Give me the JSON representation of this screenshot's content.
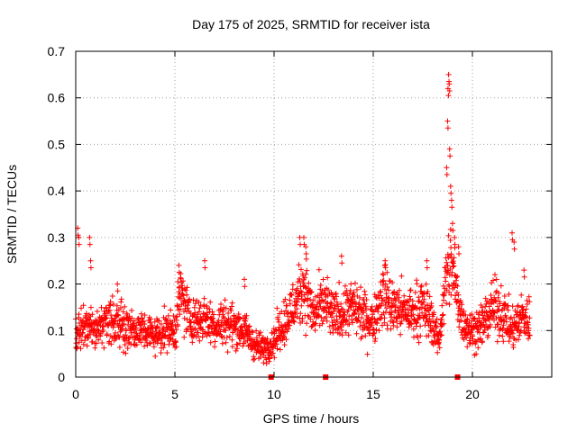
{
  "chart_data": {
    "type": "scatter",
    "title": "Day 175 of 2025, SRMTID for receiver ista",
    "xlabel": "GPS time / hours",
    "ylabel": "SRMTID / TECUs",
    "xlim": [
      0,
      24
    ],
    "ylim": [
      0,
      0.7
    ],
    "xticks": [
      0,
      5,
      10,
      15,
      20
    ],
    "xtick_labels": [
      "0",
      "5",
      "10",
      "15",
      "20"
    ],
    "yticks": [
      0,
      0.1,
      0.2,
      0.3,
      0.4,
      0.5,
      0.6,
      0.7
    ],
    "ytick_labels": [
      "0",
      "0.1",
      "0.2",
      "0.3",
      "0.4",
      "0.5",
      "0.6",
      "0.7"
    ],
    "grid": true,
    "marker": "plus",
    "color": "#ff0000",
    "series": [
      {
        "name": "SRMTID",
        "x_start": 0,
        "x_end": 22.9,
        "n_points": 2000,
        "baseline": [
          [
            0.0,
            0.09
          ],
          [
            0.5,
            0.11
          ],
          [
            1.0,
            0.1
          ],
          [
            1.5,
            0.12
          ],
          [
            2.0,
            0.12
          ],
          [
            2.5,
            0.11
          ],
          [
            3.0,
            0.1
          ],
          [
            3.5,
            0.1
          ],
          [
            4.0,
            0.09
          ],
          [
            4.5,
            0.1
          ],
          [
            5.0,
            0.1
          ],
          [
            5.3,
            0.18
          ],
          [
            5.7,
            0.13
          ],
          [
            6.0,
            0.12
          ],
          [
            6.5,
            0.13
          ],
          [
            7.0,
            0.11
          ],
          [
            7.5,
            0.12
          ],
          [
            8.0,
            0.11
          ],
          [
            8.5,
            0.1
          ],
          [
            9.0,
            0.07
          ],
          [
            9.5,
            0.06
          ],
          [
            10.0,
            0.08
          ],
          [
            10.5,
            0.12
          ],
          [
            11.0,
            0.15
          ],
          [
            11.5,
            0.2
          ],
          [
            12.0,
            0.13
          ],
          [
            12.5,
            0.16
          ],
          [
            13.0,
            0.13
          ],
          [
            13.5,
            0.14
          ],
          [
            14.0,
            0.15
          ],
          [
            14.5,
            0.13
          ],
          [
            15.0,
            0.12
          ],
          [
            15.5,
            0.18
          ],
          [
            16.0,
            0.15
          ],
          [
            16.5,
            0.14
          ],
          [
            17.0,
            0.14
          ],
          [
            17.5,
            0.15
          ],
          [
            18.0,
            0.12
          ],
          [
            18.3,
            0.07
          ],
          [
            18.6,
            0.19
          ],
          [
            18.9,
            0.25
          ],
          [
            19.2,
            0.18
          ],
          [
            19.5,
            0.12
          ],
          [
            20.0,
            0.1
          ],
          [
            20.5,
            0.11
          ],
          [
            21.0,
            0.15
          ],
          [
            21.5,
            0.14
          ],
          [
            22.0,
            0.1
          ],
          [
            22.5,
            0.13
          ],
          [
            22.9,
            0.12
          ]
        ],
        "spikes": [
          [
            0.1,
            0.32
          ],
          [
            0.15,
            0.3
          ],
          [
            0.7,
            0.3
          ],
          [
            0.75,
            0.25
          ],
          [
            2.1,
            0.2
          ],
          [
            5.2,
            0.24
          ],
          [
            6.5,
            0.25
          ],
          [
            8.5,
            0.21
          ],
          [
            11.3,
            0.3
          ],
          [
            11.5,
            0.3
          ],
          [
            11.6,
            0.28
          ],
          [
            13.4,
            0.26
          ],
          [
            15.6,
            0.25
          ],
          [
            17.7,
            0.25
          ],
          [
            18.7,
            0.45
          ],
          [
            18.75,
            0.55
          ],
          [
            18.77,
            0.62
          ],
          [
            18.8,
            0.65
          ],
          [
            18.83,
            0.63
          ],
          [
            18.85,
            0.49
          ],
          [
            18.9,
            0.41
          ],
          [
            18.95,
            0.38
          ],
          [
            19.0,
            0.33
          ],
          [
            19.1,
            0.3
          ],
          [
            19.3,
            0.28
          ],
          [
            22.0,
            0.31
          ],
          [
            22.1,
            0.29
          ],
          [
            22.6,
            0.23
          ]
        ],
        "gap_markers": [
          9.85,
          12.6,
          19.25
        ]
      }
    ]
  }
}
